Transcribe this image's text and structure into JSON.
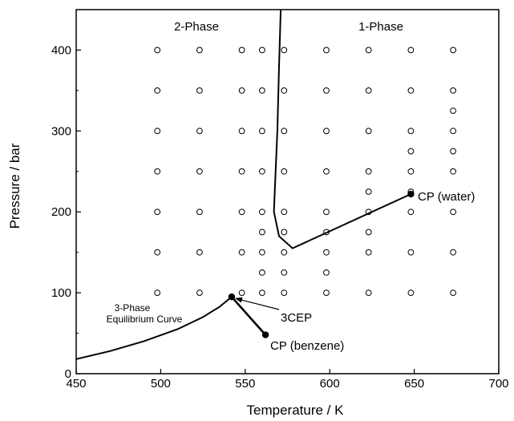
{
  "chart_data": {
    "type": "scatter",
    "xlabel": "Temperature / K",
    "ylabel": "Pressure / bar",
    "xlim": [
      450,
      700
    ],
    "ylim": [
      0,
      450
    ],
    "x_ticks": [
      "450",
      "500",
      "550",
      "600",
      "650",
      "700"
    ],
    "y_ticks": [
      "0",
      "100",
      "200",
      "300",
      "400"
    ],
    "regions": {
      "two_phase": "2-Phase",
      "one_phase": "1-Phase"
    },
    "measurements": [
      [
        498,
        400
      ],
      [
        498,
        350
      ],
      [
        498,
        300
      ],
      [
        498,
        250
      ],
      [
        498,
        200
      ],
      [
        498,
        150
      ],
      [
        498,
        100
      ],
      [
        523,
        400
      ],
      [
        523,
        350
      ],
      [
        523,
        300
      ],
      [
        523,
        250
      ],
      [
        523,
        200
      ],
      [
        523,
        150
      ],
      [
        523,
        100
      ],
      [
        548,
        400
      ],
      [
        548,
        350
      ],
      [
        548,
        300
      ],
      [
        548,
        250
      ],
      [
        548,
        200
      ],
      [
        548,
        150
      ],
      [
        548,
        100
      ],
      [
        560,
        400
      ],
      [
        560,
        350
      ],
      [
        560,
        300
      ],
      [
        560,
        250
      ],
      [
        560,
        200
      ],
      [
        560,
        175
      ],
      [
        560,
        150
      ],
      [
        560,
        125
      ],
      [
        560,
        100
      ],
      [
        573,
        400
      ],
      [
        573,
        350
      ],
      [
        573,
        300
      ],
      [
        573,
        250
      ],
      [
        573,
        200
      ],
      [
        573,
        175
      ],
      [
        573,
        150
      ],
      [
        573,
        125
      ],
      [
        573,
        100
      ],
      [
        598,
        400
      ],
      [
        598,
        350
      ],
      [
        598,
        300
      ],
      [
        598,
        250
      ],
      [
        598,
        200
      ],
      [
        598,
        175
      ],
      [
        598,
        150
      ],
      [
        598,
        125
      ],
      [
        598,
        100
      ],
      [
        623,
        400
      ],
      [
        623,
        350
      ],
      [
        623,
        300
      ],
      [
        623,
        250
      ],
      [
        623,
        225
      ],
      [
        623,
        200
      ],
      [
        623,
        175
      ],
      [
        623,
        150
      ],
      [
        623,
        100
      ],
      [
        648,
        400
      ],
      [
        648,
        350
      ],
      [
        648,
        300
      ],
      [
        648,
        275
      ],
      [
        648,
        250
      ],
      [
        648,
        225
      ],
      [
        648,
        200
      ],
      [
        648,
        150
      ],
      [
        648,
        100
      ],
      [
        673,
        400
      ],
      [
        673,
        350
      ],
      [
        673,
        325
      ],
      [
        673,
        300
      ],
      [
        673,
        275
      ],
      [
        673,
        250
      ],
      [
        673,
        200
      ],
      [
        673,
        150
      ],
      [
        673,
        100
      ]
    ],
    "boundary_curve": [
      [
        571,
        450
      ],
      [
        570,
        380
      ],
      [
        569,
        300
      ],
      [
        568,
        250
      ],
      [
        567,
        200
      ],
      [
        570,
        170
      ],
      [
        578,
        155
      ],
      [
        648,
        222
      ]
    ],
    "three_phase_curve": [
      [
        450,
        18
      ],
      [
        470,
        28
      ],
      [
        490,
        40
      ],
      [
        510,
        55
      ],
      [
        525,
        70
      ],
      [
        535,
        83
      ],
      [
        542,
        95
      ]
    ],
    "benzene_line": [
      [
        542,
        95
      ],
      [
        562,
        48
      ]
    ],
    "points": {
      "three_cep": {
        "x": 542,
        "y": 95
      },
      "cp_benzene": {
        "x": 562,
        "y": 48
      },
      "cp_water": {
        "x": 648,
        "y": 222
      }
    },
    "annotations": {
      "three_phase_line1": "3-Phase",
      "three_phase_line2": "Equilibrium Curve",
      "three_cep": "3CEP",
      "cp_benzene": "CP (benzene)",
      "cp_water": "CP (water)"
    }
  }
}
